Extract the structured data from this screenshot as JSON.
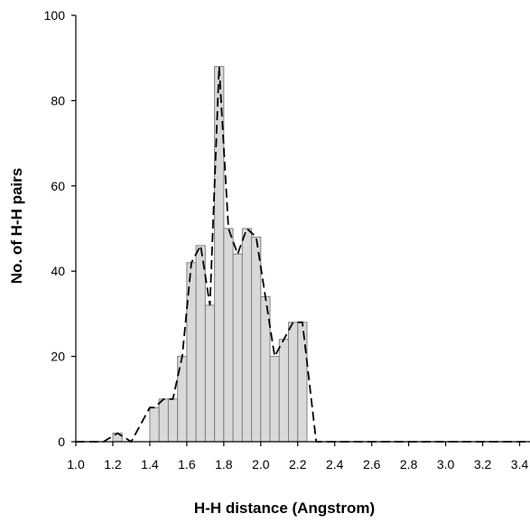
{
  "chart_data": {
    "type": "bar",
    "title": "",
    "xlabel": "H-H distance (Angstrom)",
    "ylabel": "No. of H-H pairs",
    "xlim": [
      1.0,
      3.5
    ],
    "ylim": [
      0,
      100
    ],
    "x_ticks": [
      "1.0",
      "1.2",
      "1.4",
      "1.6",
      "1.8",
      "2.0",
      "2.2",
      "2.4",
      "2.6",
      "2.8",
      "3.0",
      "3.2",
      "3.4"
    ],
    "y_ticks": [
      "0",
      "20",
      "40",
      "60",
      "80",
      "100"
    ],
    "bin_width": 0.05,
    "bins": [
      {
        "x": 1.225,
        "value": 2
      },
      {
        "x": 1.425,
        "value": 8
      },
      {
        "x": 1.475,
        "value": 10
      },
      {
        "x": 1.525,
        "value": 10
      },
      {
        "x": 1.575,
        "value": 20
      },
      {
        "x": 1.625,
        "value": 42
      },
      {
        "x": 1.675,
        "value": 46
      },
      {
        "x": 1.725,
        "value": 32
      },
      {
        "x": 1.775,
        "value": 88
      },
      {
        "x": 1.825,
        "value": 50
      },
      {
        "x": 1.875,
        "value": 44
      },
      {
        "x": 1.925,
        "value": 50
      },
      {
        "x": 1.975,
        "value": 48
      },
      {
        "x": 2.025,
        "value": 34
      },
      {
        "x": 2.075,
        "value": 20
      },
      {
        "x": 2.125,
        "value": 24
      },
      {
        "x": 2.175,
        "value": 28
      },
      {
        "x": 2.225,
        "value": 28
      }
    ],
    "line": {
      "style": "dashed",
      "x": [
        1.0,
        1.15,
        1.225,
        1.3,
        1.4,
        1.425,
        1.475,
        1.525,
        1.575,
        1.625,
        1.675,
        1.725,
        1.775,
        1.825,
        1.875,
        1.925,
        1.975,
        2.025,
        2.075,
        2.125,
        2.175,
        2.225,
        2.3,
        2.35,
        3.5
      ],
      "y": [
        0,
        0,
        2,
        0,
        8,
        8,
        10,
        10,
        20,
        42,
        46,
        32,
        88,
        50,
        44,
        50,
        48,
        34,
        20,
        24,
        28,
        28,
        0,
        0,
        0
      ]
    },
    "grid": false,
    "colors": {
      "bar_fill": "#d9d9d9",
      "bar_stroke": "#808080",
      "line": "#000000"
    }
  }
}
